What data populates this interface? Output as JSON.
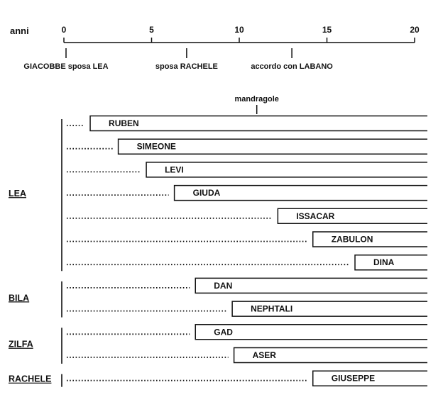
{
  "timeline": {
    "axis_label": "anni",
    "ticks": [
      {
        "value": 0,
        "label": "0"
      },
      {
        "value": 5,
        "label": "5"
      },
      {
        "value": 10,
        "label": "10"
      },
      {
        "value": 15,
        "label": "15"
      },
      {
        "value": 20,
        "label": "20"
      }
    ],
    "range": [
      0,
      20
    ],
    "events": [
      {
        "year": 0,
        "label": "GIACOBBE sposa LEA"
      },
      {
        "year": 7,
        "label": "sposa RACHELE"
      },
      {
        "year": 13,
        "label": "accordo con LABANO"
      }
    ]
  },
  "mandragole": {
    "year": 11,
    "label": "mandragole"
  },
  "groups": [
    {
      "mother": "LEA",
      "children": [
        {
          "name": "RUBEN",
          "birth_year": 1.5
        },
        {
          "name": "SIMEONE",
          "birth_year": 3.1
        },
        {
          "name": "LEVI",
          "birth_year": 4.7
        },
        {
          "name": "GIUDA",
          "birth_year": 6.3
        },
        {
          "name": "ISSACAR",
          "birth_year": 12.2
        },
        {
          "name": "ZABULON",
          "birth_year": 14.2
        },
        {
          "name": "DINA",
          "birth_year": 16.6
        }
      ]
    },
    {
      "mother": "BILA",
      "children": [
        {
          "name": "DAN",
          "birth_year": 7.5
        },
        {
          "name": "NEPHTALI",
          "birth_year": 9.6
        }
      ]
    },
    {
      "mother": "ZILFA",
      "children": [
        {
          "name": "GAD",
          "birth_year": 7.5
        },
        {
          "name": "ASER",
          "birth_year": 9.7
        }
      ]
    },
    {
      "mother": "RACHELE",
      "children": [
        {
          "name": "GIUSEPPE",
          "birth_year": 14.2
        }
      ]
    }
  ]
}
